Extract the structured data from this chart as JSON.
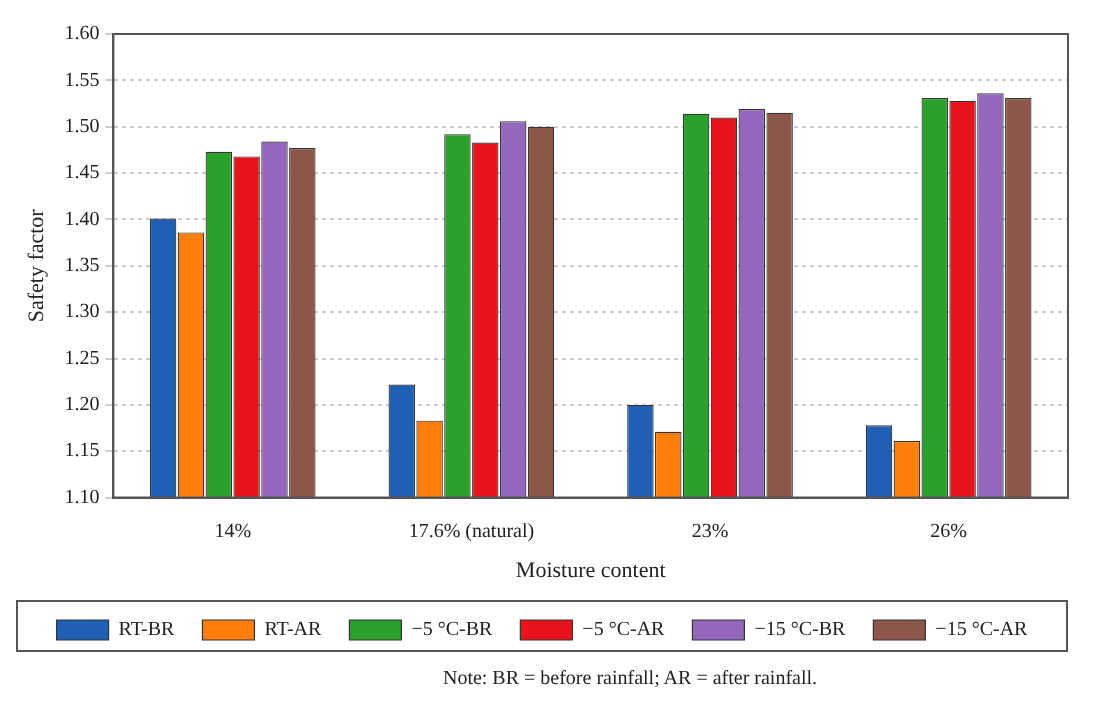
{
  "chart_data": {
    "type": "bar",
    "xlabel": "Moisture content",
    "ylabel": "Safety factor",
    "categories": [
      "14%",
      "17.6% (natural)",
      "23%",
      "26%"
    ],
    "series": [
      {
        "name": "RT-BR",
        "color": "#1f5fb4",
        "values": [
          1.401,
          1.222,
          1.2,
          1.178
        ]
      },
      {
        "name": "RT-AR",
        "color": "#ff7f0e",
        "values": [
          1.386,
          1.183,
          1.171,
          1.161
        ]
      },
      {
        "name": "−5 °C-BR",
        "color": "#2ca02c",
        "values": [
          1.473,
          1.492,
          1.514,
          1.531
        ]
      },
      {
        "name": "−5 °C-AR",
        "color": "#e8141c",
        "values": [
          1.468,
          1.483,
          1.51,
          1.528
        ]
      },
      {
        "name": "−15 °C-BR",
        "color": "#9467bd",
        "values": [
          1.484,
          1.506,
          1.519,
          1.536
        ]
      },
      {
        "name": "−15 °C-AR",
        "color": "#8c564b",
        "values": [
          1.477,
          1.5,
          1.515,
          1.531
        ]
      }
    ],
    "ylim": [
      1.1,
      1.6
    ],
    "yticks": [
      {
        "value": 1.1,
        "label": "1.10"
      },
      1.15,
      {
        "value": 1.2,
        "label": "1.20"
      },
      1.25,
      {
        "value": 1.3,
        "label": "1.30"
      },
      1.35,
      {
        "value": 1.4,
        "label": "1.40"
      },
      1.45,
      {
        "value": 1.5,
        "label": "1.50"
      },
      1.55,
      {
        "value": 1.6,
        "label": "1.60"
      }
    ],
    "grid": "y",
    "legend": "bottom",
    "annotations": [
      "Note: BR = before rainfall; AR = after rainfall."
    ]
  }
}
